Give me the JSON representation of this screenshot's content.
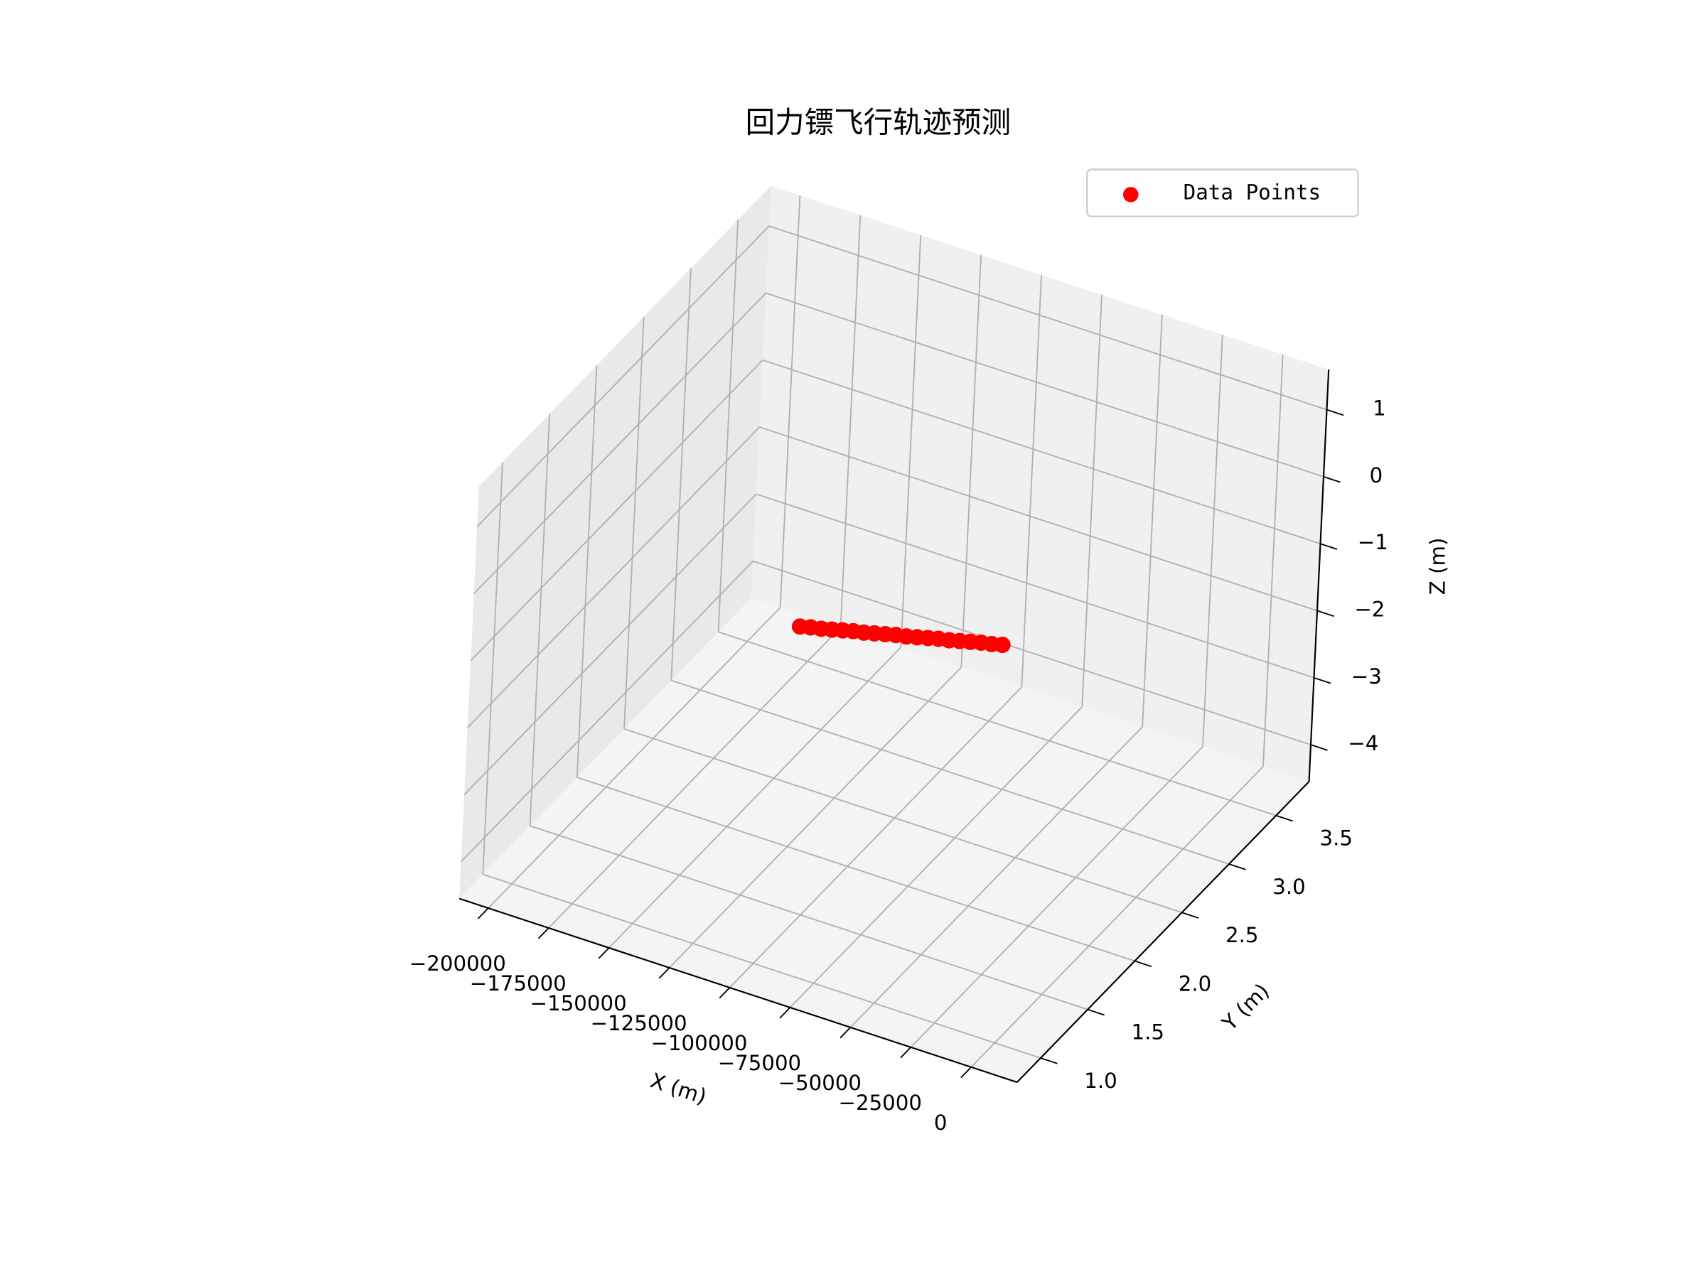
{
  "chart_data": {
    "type": "scatter3d",
    "title": "回力镖飞行轨迹预测",
    "xlabel": "X (m)",
    "ylabel": "Y (m)",
    "zlabel": "Z (m)",
    "xlim": [
      -212000,
      19000
    ],
    "ylim": [
      0.75,
      3.85
    ],
    "zlim": [
      -4.55,
      1.6
    ],
    "xticks": [
      {
        "value": -200000,
        "label": "−200000"
      },
      {
        "value": -175000,
        "label": "−175000"
      },
      {
        "value": -150000,
        "label": "−150000"
      },
      {
        "value": -125000,
        "label": "−125000"
      },
      {
        "value": -100000,
        "label": "−100000"
      },
      {
        "value": -75000,
        "label": "−75000"
      },
      {
        "value": -50000,
        "label": "−50000"
      },
      {
        "value": -25000,
        "label": "−25000"
      },
      0
    ],
    "yticks": [
      {
        "value": 1.0,
        "label": "1.0"
      },
      1.5,
      {
        "value": 2.0,
        "label": "2.0"
      },
      2.5,
      {
        "value": 3.0,
        "label": "3.0"
      },
      3.5
    ],
    "zticks": [
      {
        "value": -4,
        "label": "−4"
      },
      {
        "value": -3,
        "label": "−3"
      },
      {
        "value": -2,
        "label": "−2"
      },
      {
        "value": -1,
        "label": "−1"
      },
      0,
      1
    ],
    "grid": true,
    "legend": "upper right",
    "series": [
      {
        "name": "Data Points",
        "color": "#ff0000",
        "x": [
          -135000,
          -130600,
          -126300,
          -121900,
          -117500,
          -113200,
          -108800,
          -104500,
          -100100,
          -95700,
          -91400,
          -87000,
          -82600,
          -78300,
          -73900,
          -69600,
          -65200,
          -60800,
          -56500,
          -52100
        ],
        "y": [
          2.3,
          2.3,
          2.3,
          2.3,
          2.3,
          2.3,
          2.3,
          2.3,
          2.3,
          2.3,
          2.3,
          2.3,
          2.3,
          2.3,
          2.3,
          2.3,
          2.3,
          2.3,
          2.3,
          2.3
        ],
        "z": [
          -1.82,
          -1.78,
          -1.75,
          -1.71,
          -1.67,
          -1.63,
          -1.6,
          -1.56,
          -1.52,
          -1.48,
          -1.45,
          -1.41,
          -1.37,
          -1.33,
          -1.3,
          -1.26,
          -1.22,
          -1.18,
          -1.15,
          -1.11
        ]
      }
    ]
  }
}
